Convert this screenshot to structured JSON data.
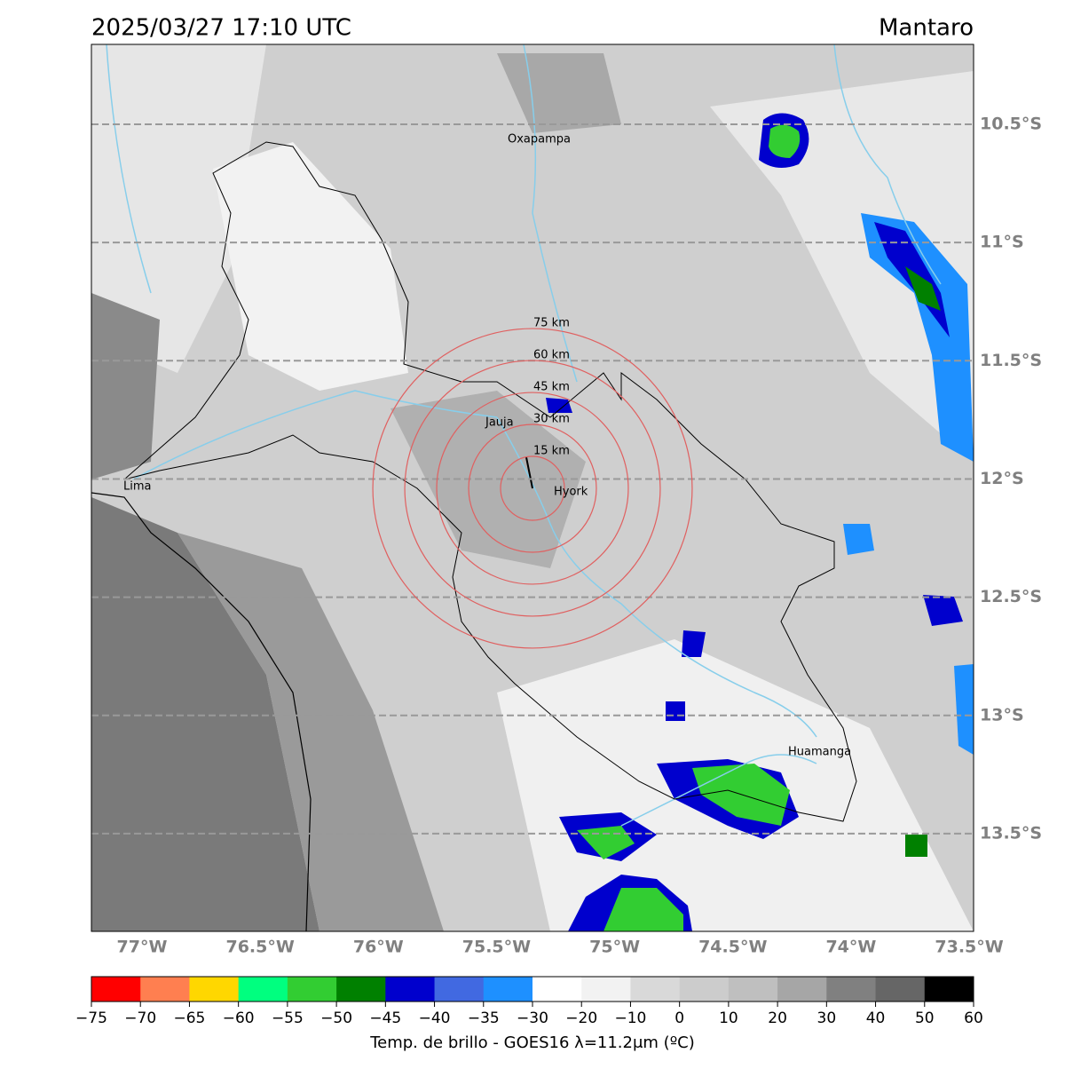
{
  "header": {
    "title": "2025/03/27 17:10 UTC",
    "region": "Mantaro"
  },
  "map": {
    "lat_ticks": [
      {
        "value": -10.5,
        "label": "10.5°S"
      },
      {
        "value": -11,
        "label": "11°S"
      },
      {
        "value": -11.5,
        "label": "11.5°S"
      },
      {
        "value": -12,
        "label": "12°S"
      },
      {
        "value": -12.5,
        "label": "12.5°S"
      },
      {
        "value": -13,
        "label": "13°S"
      },
      {
        "value": -13.5,
        "label": "13.5°S"
      }
    ],
    "lon_ticks": [
      {
        "value": -77,
        "label": "77°W"
      },
      {
        "value": -76.5,
        "label": "76.5°W"
      },
      {
        "value": -76,
        "label": "76°W"
      },
      {
        "value": -75.5,
        "label": "75.5°W"
      },
      {
        "value": -75,
        "label": "75°W"
      },
      {
        "value": -74.5,
        "label": "74.5°W"
      },
      {
        "value": -74,
        "label": "74°W"
      },
      {
        "value": -73.5,
        "label": "73.5°W"
      }
    ],
    "places": [
      "Oxapampa",
      "Jauja",
      "Lima",
      "Hyork",
      "Huamanga"
    ],
    "rings": [
      {
        "value": 15,
        "label": "15 km"
      },
      {
        "value": 30,
        "label": "30 km"
      },
      {
        "value": 45,
        "label": "45 km"
      },
      {
        "value": 60,
        "label": "60 km"
      },
      {
        "value": 75,
        "label": "75 km"
      }
    ]
  },
  "colorbar": {
    "ticks": [
      {
        "value": -75,
        "label": "−75"
      },
      {
        "value": -70,
        "label": "−70"
      },
      {
        "value": -65,
        "label": "−65"
      },
      {
        "value": -60,
        "label": "−60"
      },
      {
        "value": -55,
        "label": "−55"
      },
      {
        "value": -50,
        "label": "−50"
      },
      {
        "value": -45,
        "label": "−45"
      },
      {
        "value": -40,
        "label": "−40"
      },
      {
        "value": -35,
        "label": "−35"
      },
      {
        "value": -30,
        "label": "−30"
      },
      {
        "value": -20,
        "label": "−20"
      },
      {
        "value": -10,
        "label": "−10"
      },
      0,
      10,
      20,
      30,
      40,
      50,
      60
    ],
    "colors": [
      "#ff0000",
      "#ff7f50",
      "#ffd700",
      "#00ff7f",
      "#32cd32",
      "#008000",
      "#0000cd",
      "#4169e1",
      "#1e90ff",
      "#ffffff",
      "#f2f2f2",
      "#d9d9d9",
      "#cccccc",
      "#bfbfbf",
      "#a6a6a6",
      "#808080",
      "#666666",
      "#000000"
    ],
    "label": "Temp. de brillo - GOES16 λ=11.2μm (ºC)"
  }
}
